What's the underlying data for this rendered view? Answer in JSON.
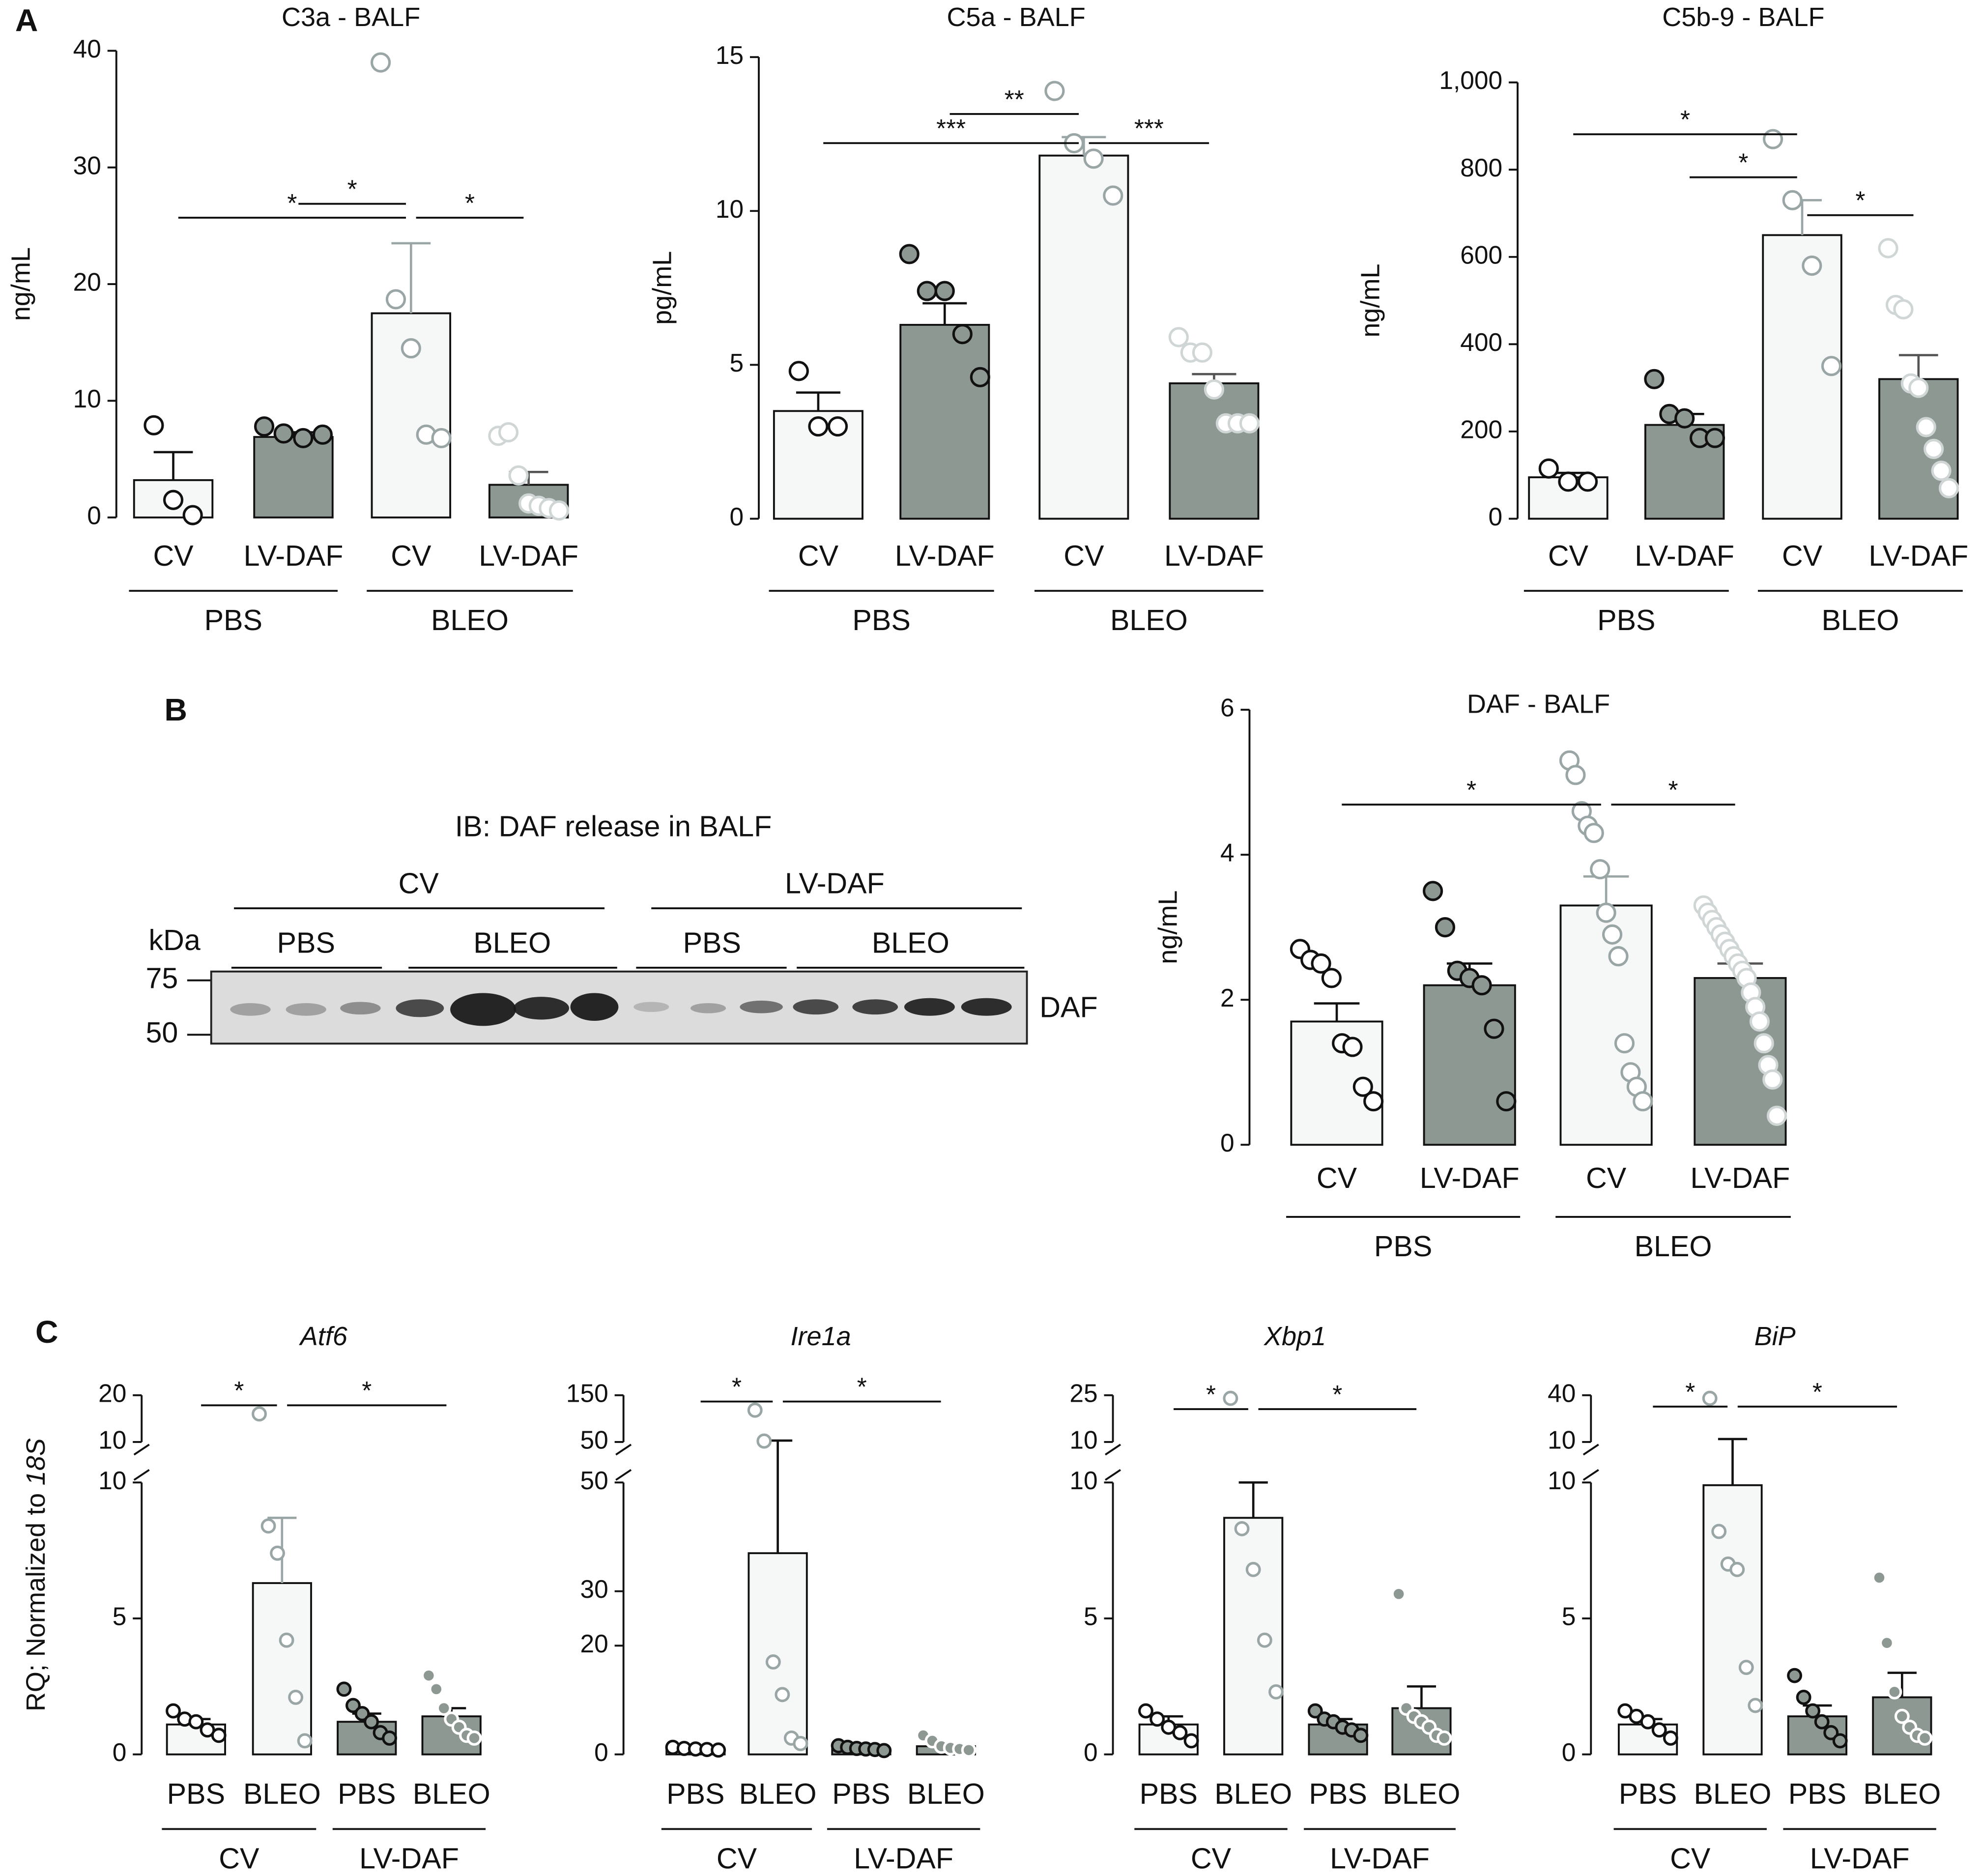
{
  "panel_labels": [
    "A",
    "B",
    "C"
  ],
  "blot": {
    "title": "IB: DAF release in BALF",
    "vectors": [
      "CV",
      "LV-DAF"
    ],
    "treatments": [
      "PBS",
      "BLEO",
      "PBS",
      "BLEO"
    ],
    "unit": "kDa",
    "markers": [
      75,
      50
    ],
    "band": "DAF"
  },
  "chart_data": [
    {
      "type": "bar",
      "title": "C3a - BALF",
      "ylabel": "ng/mL",
      "categories": [
        "CV",
        "LV-DAF",
        "CV",
        "LV-DAF"
      ],
      "groups": [
        "PBS",
        "BLEO"
      ],
      "values": [
        3.2,
        6.9,
        17.5,
        2.8
      ],
      "errors": [
        2.4,
        0.4,
        6,
        1.1
      ],
      "points": [
        [
          7.9,
          1.5,
          0.2
        ],
        [
          7.8,
          7.2,
          6.8,
          7.1
        ],
        [
          39,
          18.7,
          14.5,
          7.1,
          6.8
        ],
        [
          7,
          7.3,
          3.6,
          1.2,
          1,
          0.8,
          0.6
        ]
      ],
      "ylim": [
        0,
        40
      ],
      "yticks": [
        0,
        10,
        20,
        30,
        40
      ],
      "comparisons": [
        {
          "from": 0,
          "to": 2,
          "label": "*"
        },
        {
          "from": 1,
          "to": 2,
          "label": "*"
        },
        {
          "from": 2,
          "to": 3,
          "label": "*"
        }
      ],
      "bar_colors": [
        "#f6f8f8",
        "#8e9893",
        "#f6f8f8",
        "#8e9893"
      ],
      "point_fill": [
        "#ffffff",
        "#8e9893",
        "#ffffff",
        "#ffffff"
      ],
      "point_stroke": [
        "#111111",
        "#111111",
        "#9aa5a5",
        "#d0d6d6"
      ],
      "error_colors": [
        "#111111",
        "#111111",
        "#9aa5a5",
        "#555555"
      ]
    },
    {
      "type": "bar",
      "title": "C5a - BALF",
      "ylabel": "pg/mL",
      "categories": [
        "CV",
        "LV-DAF",
        "CV",
        "LV-DAF"
      ],
      "groups": [
        "PBS",
        "BLEO"
      ],
      "values": [
        3.5,
        6.3,
        11.8,
        4.4
      ],
      "errors": [
        0.6,
        0.7,
        0.6,
        0.3
      ],
      "points": [
        [
          4.8,
          3,
          3
        ],
        [
          8.6,
          7.4,
          7.4,
          6,
          4.6
        ],
        [
          13.9,
          12.2,
          11.7,
          10.5
        ],
        [
          5.9,
          5.4,
          5.4,
          4.2,
          3.1,
          3.1,
          3.1
        ]
      ],
      "ylim": [
        0,
        15
      ],
      "yticks": [
        0,
        5,
        10,
        15
      ],
      "comparisons": [
        {
          "from": 0,
          "to": 2,
          "label": "***"
        },
        {
          "from": 1,
          "to": 2,
          "label": "**"
        },
        {
          "from": 2,
          "to": 3,
          "label": "***"
        }
      ],
      "bar_colors": [
        "#f6f8f8",
        "#8e9893",
        "#f6f8f8",
        "#8e9893"
      ],
      "point_fill": [
        "#ffffff",
        "#8e9893",
        "#ffffff",
        "#ffffff"
      ],
      "point_stroke": [
        "#111111",
        "#111111",
        "#9aa5a5",
        "#d0d6d6"
      ],
      "error_colors": [
        "#111111",
        "#111111",
        "#9aa5a5",
        "#555555"
      ]
    },
    {
      "type": "bar",
      "title": "C5b-9 - BALF",
      "ylabel": "ng/mL",
      "categories": [
        "CV",
        "LV-DAF",
        "CV",
        "LV-DAF"
      ],
      "groups": [
        "PBS",
        "BLEO"
      ],
      "values": [
        95,
        215,
        650,
        320
      ],
      "errors": [
        10,
        25,
        80,
        55
      ],
      "points": [
        [
          115,
          85,
          85
        ],
        [
          320,
          240,
          230,
          185,
          185
        ],
        [
          870,
          730,
          580,
          350
        ],
        [
          620,
          490,
          480,
          310,
          300,
          210,
          160,
          110,
          70
        ]
      ],
      "ylim": [
        0,
        1000
      ],
      "yticks": [
        0,
        200,
        400,
        600,
        800,
        {
          "value": 1000,
          "label": "1,000"
        }
      ],
      "comparisons": [
        {
          "from": 0,
          "to": 2,
          "label": "*"
        },
        {
          "from": 1,
          "to": 2,
          "label": "*"
        },
        {
          "from": 2,
          "to": 3,
          "label": "*"
        }
      ],
      "bar_colors": [
        "#f6f8f8",
        "#8e9893",
        "#f6f8f8",
        "#8e9893"
      ],
      "point_fill": [
        "#ffffff",
        "#8e9893",
        "#ffffff",
        "#ffffff"
      ],
      "point_stroke": [
        "#111111",
        "#111111",
        "#9aa5a5",
        "#d0d6d6"
      ],
      "error_colors": [
        "#111111",
        "#111111",
        "#9aa5a5",
        "#555555"
      ]
    },
    {
      "type": "bar",
      "title": "DAF - BALF",
      "ylabel": "ng/mL",
      "categories": [
        "CV",
        "LV-DAF",
        "CV",
        "LV-DAF"
      ],
      "groups": [
        "PBS",
        "BLEO"
      ],
      "values": [
        1.7,
        2.2,
        3.3,
        2.3
      ],
      "errors": [
        0.25,
        0.3,
        0.4,
        0.2
      ],
      "points": [
        [
          2.7,
          2.55,
          2.5,
          2.3,
          1.4,
          1.35,
          0.8,
          0.6
        ],
        [
          3.5,
          3,
          2.4,
          2.3,
          2.2,
          1.6,
          0.6
        ],
        [
          5.3,
          5.1,
          4.6,
          4.4,
          4.3,
          3.8,
          3.2,
          2.9,
          2.6,
          1.4,
          1,
          0.8,
          0.6
        ],
        [
          3.3,
          3.2,
          3.1,
          3,
          2.9,
          2.8,
          2.7,
          2.6,
          2.5,
          2.4,
          2.3,
          2.1,
          1.9,
          1.7,
          1.4,
          1.1,
          0.9,
          0.4
        ]
      ],
      "ylim": [
        0,
        6
      ],
      "yticks": [
        0,
        2,
        4,
        6
      ],
      "comparisons": [
        {
          "from": 0,
          "to": 2,
          "label": "*"
        },
        {
          "from": 2,
          "to": 3,
          "label": "*"
        }
      ],
      "bar_colors": [
        "#f6f8f8",
        "#8e9893",
        "#f6f8f8",
        "#8e9893"
      ],
      "point_fill": [
        "#ffffff",
        "#8e9893",
        "#ffffff",
        "#ffffff"
      ],
      "point_stroke": [
        "#111111",
        "#111111",
        "#9aa5a5",
        "#d0d6d6"
      ],
      "error_colors": [
        "#111111",
        "#111111",
        "#9aa5a5",
        "#555555"
      ]
    },
    {
      "type": "bar",
      "title": "Atf6",
      "title_style": "italic",
      "ylabel": {
        "text": "RQ; Normalized to",
        "italic": "18S"
      },
      "categories": [
        "PBS",
        "BLEO",
        "PBS",
        "BLEO"
      ],
      "groups": [
        "CV",
        "LV-DAF"
      ],
      "values": [
        1.1,
        6.3,
        1.2,
        1.4
      ],
      "errors": [
        0.2,
        2.4,
        0.3,
        0.3
      ],
      "points": [
        [
          1.6,
          1.3,
          1.2,
          0.9,
          0.7
        ],
        [
          16,
          8.4,
          7.4,
          4.2,
          2.1,
          0.5
        ],
        [
          2.4,
          1.8,
          1.5,
          1.2,
          0.8,
          0.6
        ],
        [
          2.9,
          2.4,
          1.7,
          1.3,
          1,
          0.7,
          0.6
        ]
      ],
      "ylim_lower": [
        0,
        10
      ],
      "yticks_lower": [
        0,
        5,
        10
      ],
      "ylim_upper": [
        10,
        20
      ],
      "yticks_upper": [
        10,
        20
      ],
      "comparisons": [
        {
          "from": 0,
          "to": 1,
          "label": "*"
        },
        {
          "from": 1,
          "to": 3,
          "label": "*"
        }
      ],
      "bar_colors": [
        "#f6f8f8",
        "#f6f8f8",
        "#8e9893",
        "#8e9893"
      ],
      "point_fill": [
        "#ffffff",
        "#ffffff",
        "#8e9893",
        "#8e9893"
      ],
      "point_stroke": [
        "#111111",
        "#9aa5a5",
        "#111111",
        "#ffffff"
      ],
      "error_colors": [
        "#111111",
        "#9aa5a5",
        "#111111",
        "#111111"
      ]
    },
    {
      "type": "bar",
      "title": "Ire1a",
      "title_style": "italic",
      "categories": [
        "PBS",
        "BLEO",
        "PBS",
        "BLEO"
      ],
      "groups": [
        "CV",
        "LV-DAF"
      ],
      "values": [
        1,
        37,
        1,
        1.5
      ],
      "errors": [
        0.15,
        16,
        0.2,
        0.4
      ],
      "points": [
        [
          1.3,
          1.1,
          1,
          0.9,
          0.8
        ],
        [
          118,
          52,
          17,
          11,
          3,
          2
        ],
        [
          1.6,
          1.3,
          1.1,
          1,
          0.9,
          0.7
        ],
        [
          3.5,
          2.5,
          1.5,
          1.2,
          1,
          0.8
        ]
      ],
      "ylim_lower": [
        0,
        50
      ],
      "yticks_lower": [
        0,
        20,
        30,
        50
      ],
      "ylim_upper": [
        50,
        150
      ],
      "yticks_upper": [
        50,
        150
      ],
      "comparisons": [
        {
          "from": 0,
          "to": 1,
          "label": "*"
        },
        {
          "from": 1,
          "to": 3,
          "label": "*"
        }
      ],
      "bar_colors": [
        "#f6f8f8",
        "#f6f8f8",
        "#8e9893",
        "#8e9893"
      ],
      "point_fill": [
        "#ffffff",
        "#ffffff",
        "#8e9893",
        "#8e9893"
      ],
      "point_stroke": [
        "#111111",
        "#9aa5a5",
        "#111111",
        "#ffffff"
      ],
      "error_colors": [
        "#111111",
        "#111111",
        "#111111",
        "#111111"
      ]
    },
    {
      "type": "bar",
      "title": "Xbp1",
      "title_style": "italic",
      "categories": [
        "PBS",
        "BLEO",
        "PBS",
        "BLEO"
      ],
      "groups": [
        "CV",
        "LV-DAF"
      ],
      "values": [
        1.1,
        8.7,
        1.1,
        1.7
      ],
      "errors": [
        0.3,
        1.3,
        0.2,
        0.8
      ],
      "points": [
        [
          1.6,
          1.3,
          1,
          0.8,
          0.5
        ],
        [
          24,
          8.3,
          6.8,
          4.2,
          2.3
        ],
        [
          1.6,
          1.3,
          1.2,
          1,
          0.9,
          0.7
        ],
        [
          5.9,
          1.7,
          1.4,
          1.2,
          1,
          0.7,
          0.6
        ]
      ],
      "ylim_lower": [
        0,
        10
      ],
      "yticks_lower": [
        0,
        5,
        10
      ],
      "ylim_upper": [
        10,
        25
      ],
      "yticks_upper": [
        10,
        25
      ],
      "comparisons": [
        {
          "from": 0,
          "to": 1,
          "label": "*"
        },
        {
          "from": 1,
          "to": 3,
          "label": "*"
        }
      ],
      "bar_colors": [
        "#f6f8f8",
        "#f6f8f8",
        "#8e9893",
        "#8e9893"
      ],
      "point_fill": [
        "#ffffff",
        "#ffffff",
        "#8e9893",
        "#8e9893"
      ],
      "point_stroke": [
        "#111111",
        "#9aa5a5",
        "#111111",
        "#ffffff"
      ],
      "error_colors": [
        "#111111",
        "#111111",
        "#111111",
        "#111111"
      ]
    },
    {
      "type": "bar",
      "title": "BiP",
      "title_style": "italic",
      "categories": [
        "PBS",
        "BLEO",
        "PBS",
        "BLEO"
      ],
      "groups": [
        "CV",
        "LV-DAF"
      ],
      "values": [
        1.1,
        9.9,
        1.4,
        2.1
      ],
      "errors": [
        0.2,
        2,
        0.4,
        0.9
      ],
      "points": [
        [
          1.6,
          1.4,
          1.2,
          0.9,
          0.6
        ],
        [
          38,
          8.2,
          7,
          6.8,
          3.2,
          1.8
        ],
        [
          2.9,
          2.1,
          1.6,
          1.2,
          0.8,
          0.5
        ],
        [
          6.5,
          4.1,
          2.3,
          1.4,
          1,
          0.7,
          0.6
        ]
      ],
      "ylim_lower": [
        0,
        10
      ],
      "yticks_lower": [
        0,
        5,
        10
      ],
      "ylim_upper": [
        10,
        40
      ],
      "yticks_upper": [
        10,
        40
      ],
      "comparisons": [
        {
          "from": 0,
          "to": 1,
          "label": "*"
        },
        {
          "from": 1,
          "to": 3,
          "label": "*"
        }
      ],
      "bar_colors": [
        "#f6f8f8",
        "#f6f8f8",
        "#8e9893",
        "#8e9893"
      ],
      "point_fill": [
        "#ffffff",
        "#ffffff",
        "#8e9893",
        "#8e9893"
      ],
      "point_stroke": [
        "#111111",
        "#9aa5a5",
        "#111111",
        "#ffffff"
      ],
      "error_colors": [
        "#111111",
        "#111111",
        "#111111",
        "#111111"
      ]
    }
  ]
}
